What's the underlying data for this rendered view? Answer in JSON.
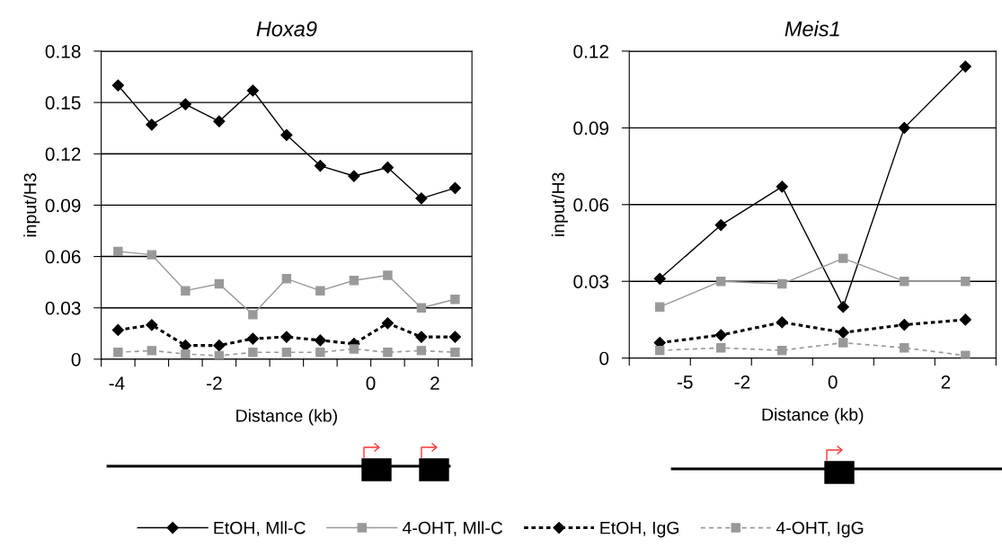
{
  "chart_data": [
    {
      "type": "line",
      "title": "Hoxa9",
      "xlabel": "Distance (kb)",
      "ylabel": "input/H3",
      "categories": [
        null,
        null,
        null,
        null,
        null,
        null,
        null,
        null,
        null,
        null,
        null
      ],
      "annotations": [
        "-4",
        "-2",
        "0",
        "2"
      ],
      "ylim": [
        0,
        0.18
      ],
      "yticks": [
        0,
        0.03,
        0.06,
        0.09,
        0.12,
        0.15,
        0.18
      ],
      "grid": "y",
      "legend": "bottom",
      "series": [
        {
          "name": "EtOH, Mll-C",
          "color": "#000000",
          "marker": "diamond",
          "line_style": "solid",
          "values": [
            0.16,
            0.137,
            0.149,
            0.139,
            0.157,
            0.131,
            0.113,
            0.107,
            0.112,
            0.094,
            0.1
          ]
        },
        {
          "name": "4-OHT, Mll-C",
          "color": "#999999",
          "marker": "square",
          "line_style": "solid",
          "values": [
            0.063,
            0.061,
            0.04,
            0.044,
            0.026,
            0.047,
            0.04,
            0.046,
            0.049,
            0.03,
            0.035
          ]
        },
        {
          "name": "EtOH, IgG",
          "color": "#000000",
          "marker": "diamond",
          "line_style": "dotted",
          "values": [
            0.017,
            0.02,
            0.008,
            0.008,
            0.012,
            0.013,
            0.011,
            0.009,
            0.021,
            0.013,
            0.013
          ]
        },
        {
          "name": "4-OHT, IgG",
          "color": "#999999",
          "marker": "square",
          "line_style": "dashed",
          "values": [
            0.004,
            0.005,
            0.003,
            0.002,
            0.004,
            0.004,
            0.004,
            0.006,
            0.004,
            0.005,
            0.004
          ]
        }
      ]
    },
    {
      "type": "line",
      "title": "Meis1",
      "xlabel": "Distance (kb)",
      "ylabel": "input/H3",
      "categories": [
        null,
        null,
        null,
        null,
        null,
        null
      ],
      "annotations": [
        "-5",
        "-2",
        "0",
        "2"
      ],
      "ylim": [
        0,
        0.12
      ],
      "yticks": [
        0,
        0.03,
        0.06,
        0.09,
        0.12
      ],
      "grid": "y",
      "series": [
        {
          "color": "#000000",
          "marker": "diamond",
          "line_style": "solid",
          "values": [
            0.031,
            0.052,
            0.067,
            0.02,
            0.09,
            0.114
          ]
        },
        {
          "color": "#999999",
          "marker": "square",
          "line_style": "solid",
          "values": [
            0.02,
            0.03,
            0.029,
            0.039,
            0.03,
            0.03
          ]
        },
        {
          "color": "#000000",
          "marker": "diamond",
          "line_style": "dotted",
          "values": [
            0.006,
            0.009,
            0.014,
            0.01,
            0.013,
            0.015
          ]
        },
        {
          "color": "#999999",
          "marker": "square",
          "line_style": "dashed",
          "values": [
            0.003,
            0.004,
            0.003,
            0.006,
            0.004,
            0.001
          ]
        }
      ]
    }
  ]
}
